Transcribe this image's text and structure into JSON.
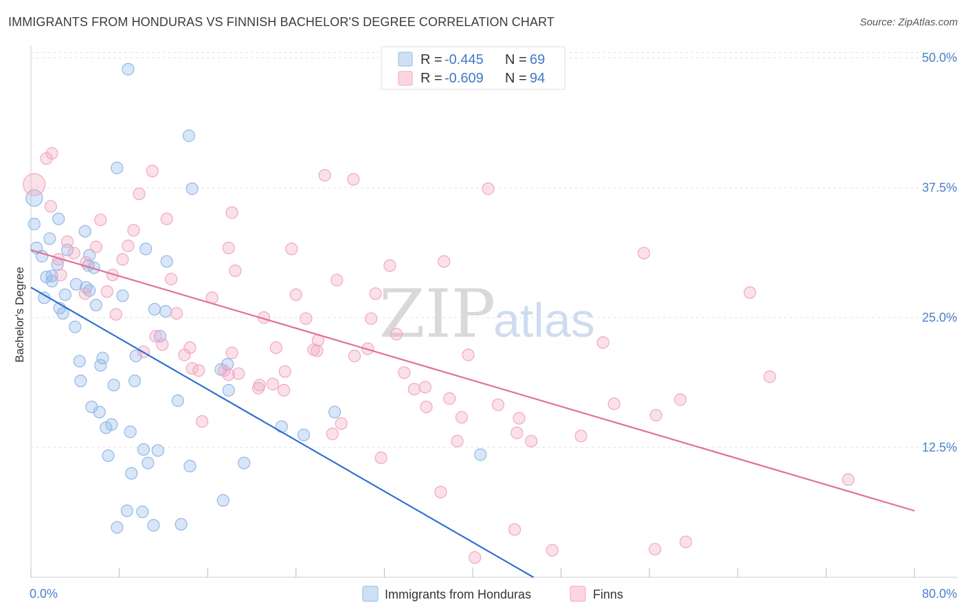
{
  "header": {
    "title": "IMMIGRANTS FROM HONDURAS VS FINNISH BACHELOR'S DEGREE CORRELATION CHART",
    "source": "Source: ZipAtlas.com"
  },
  "watermark": {
    "zip": "ZIP",
    "atlas": "atlas"
  },
  "legend": {
    "rows": [
      {
        "r_label": "R =",
        "r_value": "-0.445",
        "n_label": "N =",
        "n_value": "69",
        "color": "#8fb8e8"
      },
      {
        "r_label": "R =",
        "r_value": "-0.609",
        "n_label": "N =",
        "n_value": "94",
        "color": "#f2a7bf"
      }
    ]
  },
  "chart_data": {
    "type": "scatter",
    "ylabel": "Bachelor's Degree",
    "xlim": [
      0,
      80
    ],
    "ylim": [
      0,
      51
    ],
    "x_tick_labels": [
      "0.0%",
      "80.0%"
    ],
    "y_ticks": [
      12.5,
      25.0,
      37.5,
      50.0
    ],
    "y_tick_labels": [
      "12.5%",
      "25.0%",
      "37.5%",
      "50.0%"
    ],
    "grid": true,
    "series": [
      {
        "name": "Immigrants from Honduras",
        "color": "#8fb8e8",
        "line_color": "#2f6fd0",
        "trend": {
          "x0": 0,
          "y0": 27.9,
          "x1": 45.5,
          "y1": 0
        },
        "points": [
          [
            8.8,
            48.9
          ],
          [
            14.3,
            42.5
          ],
          [
            7.8,
            39.4
          ],
          [
            14.6,
            37.4
          ],
          [
            0.3,
            36.5
          ],
          [
            0.3,
            34.0
          ],
          [
            2.5,
            34.5
          ],
          [
            4.9,
            33.3
          ],
          [
            0.5,
            31.7
          ],
          [
            1.7,
            32.6
          ],
          [
            1.0,
            30.9
          ],
          [
            3.3,
            31.5
          ],
          [
            10.4,
            31.6
          ],
          [
            12.3,
            30.4
          ],
          [
            5.3,
            31.0
          ],
          [
            2.4,
            30.1
          ],
          [
            5.2,
            30.0
          ],
          [
            5.7,
            29.8
          ],
          [
            1.4,
            28.9
          ],
          [
            1.9,
            29.0
          ],
          [
            1.9,
            28.5
          ],
          [
            4.1,
            28.2
          ],
          [
            5.0,
            27.9
          ],
          [
            5.3,
            27.6
          ],
          [
            3.1,
            27.2
          ],
          [
            1.2,
            26.9
          ],
          [
            8.3,
            27.1
          ],
          [
            5.9,
            26.2
          ],
          [
            2.6,
            25.9
          ],
          [
            11.2,
            25.8
          ],
          [
            12.2,
            25.6
          ],
          [
            2.9,
            25.4
          ],
          [
            4.0,
            24.1
          ],
          [
            11.7,
            23.2
          ],
          [
            9.5,
            21.3
          ],
          [
            6.5,
            21.1
          ],
          [
            4.4,
            20.8
          ],
          [
            6.3,
            20.4
          ],
          [
            17.2,
            20.0
          ],
          [
            17.8,
            20.5
          ],
          [
            4.5,
            18.9
          ],
          [
            9.4,
            18.9
          ],
          [
            7.5,
            18.5
          ],
          [
            17.9,
            18.0
          ],
          [
            13.3,
            17.0
          ],
          [
            5.5,
            16.4
          ],
          [
            6.2,
            15.9
          ],
          [
            27.5,
            15.9
          ],
          [
            7.3,
            14.7
          ],
          [
            6.8,
            14.4
          ],
          [
            22.7,
            14.5
          ],
          [
            9.0,
            14.0
          ],
          [
            24.7,
            13.7
          ],
          [
            10.2,
            12.3
          ],
          [
            11.5,
            12.2
          ],
          [
            7.0,
            11.7
          ],
          [
            40.7,
            11.8
          ],
          [
            10.6,
            11.0
          ],
          [
            14.4,
            10.7
          ],
          [
            19.3,
            11.0
          ],
          [
            9.1,
            10.0
          ],
          [
            17.4,
            7.4
          ],
          [
            8.7,
            6.4
          ],
          [
            10.1,
            6.3
          ],
          [
            7.8,
            4.8
          ],
          [
            11.1,
            5.0
          ],
          [
            13.6,
            5.1
          ]
        ]
      },
      {
        "name": "Finns",
        "color": "#f2a7bf",
        "line_color": "#e07096",
        "trend": {
          "x0": 0,
          "y0": 31.5,
          "x1": 80,
          "y1": 6.4
        },
        "points": [
          [
            0.3,
            37.8
          ],
          [
            1.4,
            40.3
          ],
          [
            1.9,
            40.8
          ],
          [
            11.0,
            39.1
          ],
          [
            26.6,
            38.7
          ],
          [
            29.2,
            38.3
          ],
          [
            41.4,
            37.4
          ],
          [
            9.8,
            36.9
          ],
          [
            1.8,
            35.7
          ],
          [
            18.2,
            35.1
          ],
          [
            6.3,
            34.4
          ],
          [
            12.3,
            34.5
          ],
          [
            9.3,
            33.4
          ],
          [
            3.3,
            32.3
          ],
          [
            8.8,
            31.9
          ],
          [
            5.9,
            31.8
          ],
          [
            17.9,
            31.7
          ],
          [
            23.6,
            31.6
          ],
          [
            55.5,
            31.2
          ],
          [
            3.9,
            31.2
          ],
          [
            2.5,
            30.6
          ],
          [
            5.0,
            30.3
          ],
          [
            8.3,
            30.6
          ],
          [
            37.4,
            30.4
          ],
          [
            32.5,
            30.0
          ],
          [
            18.5,
            29.5
          ],
          [
            2.7,
            29.1
          ],
          [
            7.4,
            29.1
          ],
          [
            12.7,
            28.7
          ],
          [
            27.7,
            28.6
          ],
          [
            4.9,
            27.3
          ],
          [
            6.9,
            27.5
          ],
          [
            24.0,
            27.2
          ],
          [
            31.2,
            27.3
          ],
          [
            65.1,
            27.4
          ],
          [
            16.4,
            26.9
          ],
          [
            7.7,
            25.3
          ],
          [
            13.2,
            25.4
          ],
          [
            21.1,
            25.0
          ],
          [
            24.9,
            24.9
          ],
          [
            30.8,
            24.9
          ],
          [
            33.1,
            23.4
          ],
          [
            11.3,
            23.2
          ],
          [
            26.0,
            22.8
          ],
          [
            51.8,
            22.6
          ],
          [
            11.9,
            22.4
          ],
          [
            13.9,
            21.4
          ],
          [
            14.4,
            22.1
          ],
          [
            22.2,
            22.1
          ],
          [
            25.6,
            21.9
          ],
          [
            25.9,
            21.8
          ],
          [
            29.3,
            21.3
          ],
          [
            30.5,
            22.0
          ],
          [
            39.6,
            21.4
          ],
          [
            18.2,
            21.6
          ],
          [
            10.2,
            21.7
          ],
          [
            14.6,
            20.1
          ],
          [
            15.2,
            19.9
          ],
          [
            17.5,
            19.9
          ],
          [
            18.8,
            19.6
          ],
          [
            17.9,
            19.5
          ],
          [
            23.0,
            19.8
          ],
          [
            33.8,
            19.7
          ],
          [
            66.9,
            19.3
          ],
          [
            20.7,
            18.5
          ],
          [
            20.6,
            18.2
          ],
          [
            21.9,
            18.6
          ],
          [
            22.9,
            18.0
          ],
          [
            34.7,
            18.1
          ],
          [
            35.7,
            18.3
          ],
          [
            37.9,
            17.2
          ],
          [
            58.8,
            17.1
          ],
          [
            35.8,
            16.4
          ],
          [
            42.3,
            16.6
          ],
          [
            52.8,
            16.7
          ],
          [
            56.6,
            15.6
          ],
          [
            39.0,
            15.4
          ],
          [
            44.2,
            15.3
          ],
          [
            15.5,
            15.0
          ],
          [
            28.1,
            14.8
          ],
          [
            27.3,
            13.8
          ],
          [
            44.0,
            13.9
          ],
          [
            49.8,
            13.6
          ],
          [
            45.3,
            13.1
          ],
          [
            38.6,
            13.1
          ],
          [
            31.7,
            11.5
          ],
          [
            74.0,
            9.4
          ],
          [
            37.1,
            8.2
          ],
          [
            43.8,
            4.6
          ],
          [
            47.2,
            2.6
          ],
          [
            56.5,
            2.7
          ],
          [
            59.3,
            3.4
          ],
          [
            40.2,
            1.9
          ]
        ]
      }
    ]
  },
  "bottom_legend": [
    "Immigrants from Honduras",
    "Finns"
  ]
}
